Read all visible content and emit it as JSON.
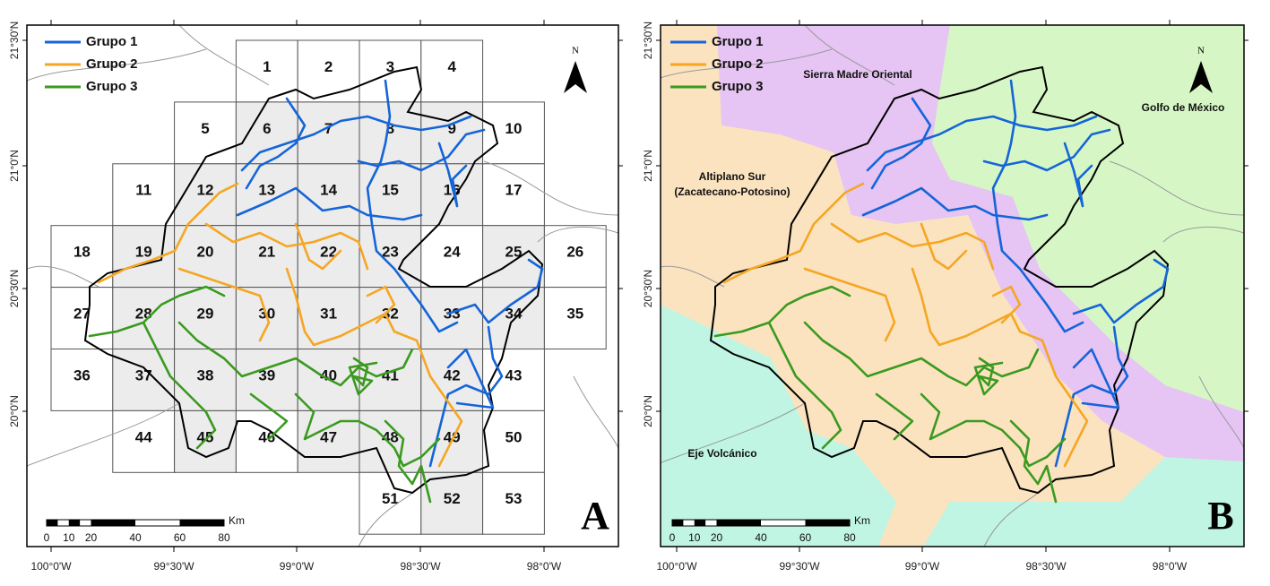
{
  "panels": [
    {
      "legend": [
        {
          "name": "Grupo 1",
          "color": "#1565d8"
        },
        {
          "name": "Grupo 2",
          "color": "#f5a623"
        },
        {
          "name": "Grupo 3",
          "color": "#3a9a1f"
        }
      ],
      "cells": [
        "1",
        "2",
        "3",
        "4",
        "5",
        "6",
        "7",
        "8",
        "9",
        "10",
        "11",
        "12",
        "13",
        "14",
        "15",
        "16",
        "17",
        "18",
        "19",
        "20",
        "21",
        "22",
        "23",
        "24",
        "25",
        "26",
        "27",
        "28",
        "29",
        "30",
        "31",
        "32",
        "33",
        "34",
        "35",
        "36",
        "37",
        "38",
        "39",
        "40",
        "41",
        "42",
        "43",
        "44",
        "45",
        "46",
        "47",
        "48",
        "49",
        "50",
        "51",
        "52",
        "53"
      ],
      "north": "N",
      "scale": [
        "0",
        "10",
        "20",
        "40",
        "60",
        "80"
      ],
      "scale_unit": "Km",
      "letter": "A",
      "lat_labels": [
        "21°30'N",
        "21°0'N",
        "20°30'N",
        "20°0'N"
      ],
      "lon_labels": [
        "100°0'W",
        "99°30'W",
        "99°0'W",
        "98°30'W",
        "98°0'W"
      ]
    },
    {
      "legend": [
        {
          "name": "Grupo 1",
          "color": "#1565d8"
        },
        {
          "name": "Grupo 2",
          "color": "#f5a623"
        },
        {
          "name": "Grupo 3",
          "color": "#3a9a1f"
        }
      ],
      "regions": [
        "Sierra Madre Oriental",
        "Golfo de México",
        "Altiplano Sur",
        "(Zacatecano-Potosino)",
        "Eje Volcánico"
      ],
      "north": "N",
      "scale": [
        "0",
        "10",
        "20",
        "40",
        "60",
        "80"
      ],
      "scale_unit": "Km",
      "letter": "B",
      "lat_labels": [
        "21°30'N",
        "21°0'N",
        "20°30'N",
        "20°0'N"
      ],
      "lon_labels": [
        "100°0'W",
        "99°30'W",
        "99°0'W",
        "98°30'W",
        "98°0'W"
      ]
    }
  ]
}
